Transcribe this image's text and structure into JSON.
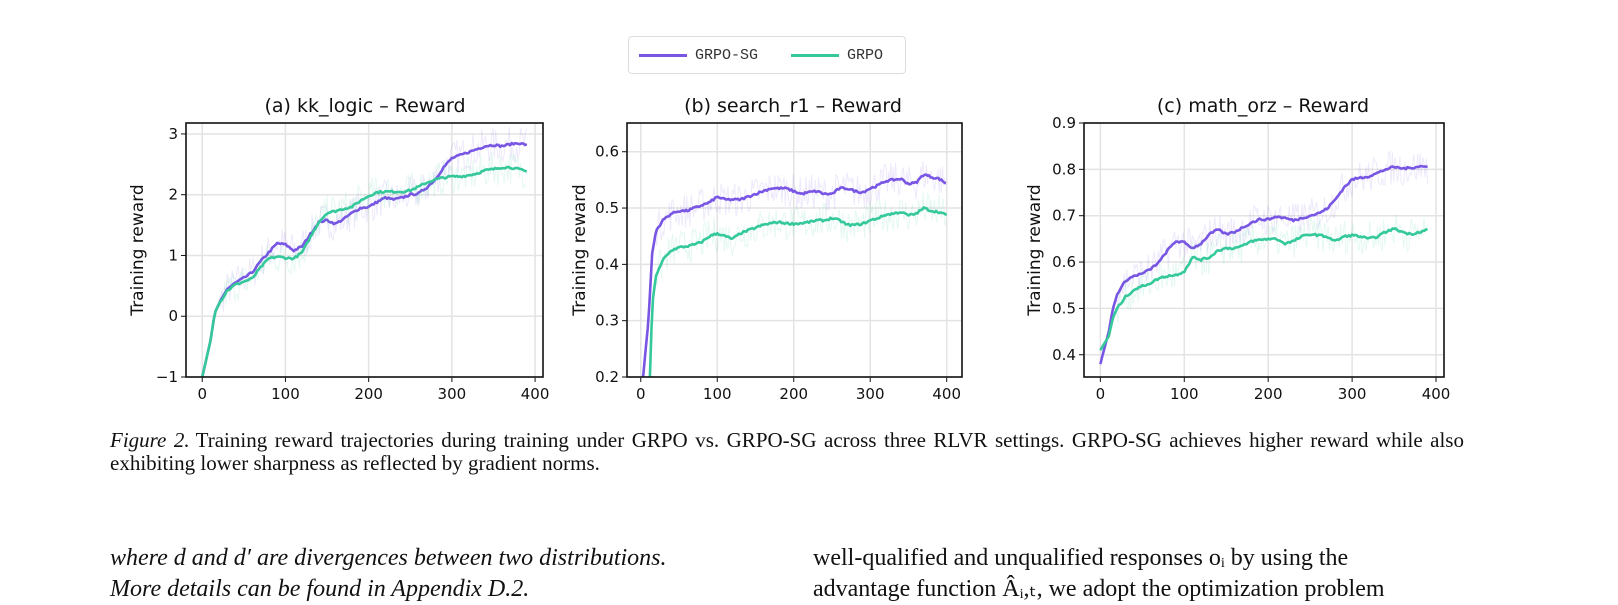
{
  "legend": {
    "items": [
      {
        "label": "GRPO-SG",
        "color": "#7856e3"
      },
      {
        "label": "GRPO",
        "color": "#34c89a"
      }
    ]
  },
  "chart_data": [
    {
      "type": "line",
      "title": "(a) kk_logic – Reward",
      "xlabel": "",
      "ylabel": "Training reward",
      "xlim": [
        -19.5,
        409.5
      ],
      "ylim": [
        -1,
        3.18
      ],
      "xticks": [
        0,
        100,
        200,
        300,
        400
      ],
      "yticks": [
        -1,
        0,
        1,
        2,
        3
      ],
      "ytick_labels": [
        "−1",
        "0",
        "1",
        "2",
        "3"
      ],
      "grid": true,
      "series": [
        {
          "name": "GRPO-SG",
          "color": "#7856e3",
          "x": [
            0,
            10,
            15,
            20,
            30,
            40,
            50,
            60,
            70,
            80,
            90,
            100,
            110,
            120,
            130,
            140,
            150,
            160,
            170,
            180,
            190,
            200,
            210,
            220,
            230,
            240,
            250,
            260,
            270,
            280,
            290,
            300,
            310,
            320,
            330,
            340,
            350,
            360,
            370,
            380,
            390
          ],
          "y": [
            -1,
            -0.4,
            0.05,
            0.2,
            0.45,
            0.55,
            0.63,
            0.72,
            0.9,
            1.05,
            1.2,
            1.18,
            1.08,
            1.15,
            1.35,
            1.55,
            1.58,
            1.52,
            1.6,
            1.7,
            1.78,
            1.8,
            1.88,
            1.95,
            1.92,
            1.95,
            2.0,
            2.02,
            2.12,
            2.25,
            2.45,
            2.6,
            2.65,
            2.7,
            2.75,
            2.8,
            2.82,
            2.8,
            2.83,
            2.85,
            2.82
          ]
        },
        {
          "name": "GRPO",
          "color": "#34c89a",
          "x": [
            0,
            10,
            15,
            20,
            30,
            40,
            50,
            60,
            70,
            80,
            90,
            100,
            110,
            120,
            130,
            140,
            150,
            160,
            170,
            180,
            190,
            200,
            210,
            220,
            230,
            240,
            250,
            260,
            270,
            280,
            290,
            300,
            310,
            320,
            330,
            340,
            350,
            360,
            370,
            380,
            390
          ],
          "y": [
            -1,
            -0.4,
            0.05,
            0.2,
            0.42,
            0.52,
            0.57,
            0.62,
            0.8,
            0.95,
            0.98,
            0.96,
            0.95,
            1.05,
            1.3,
            1.55,
            1.7,
            1.73,
            1.77,
            1.8,
            1.9,
            1.98,
            2.04,
            2.05,
            2.05,
            2.05,
            2.07,
            2.13,
            2.2,
            2.25,
            2.28,
            2.3,
            2.3,
            2.32,
            2.35,
            2.4,
            2.42,
            2.45,
            2.45,
            2.42,
            2.38
          ]
        }
      ]
    },
    {
      "type": "line",
      "title": "(b) search_r1 – Reward",
      "xlabel": "",
      "ylabel": "Training reward",
      "xlim": [
        -18,
        420
      ],
      "ylim": [
        0.2,
        0.651
      ],
      "xticks": [
        0,
        100,
        200,
        300,
        400
      ],
      "yticks": [
        0.2,
        0.3,
        0.4,
        0.5,
        0.6
      ],
      "ytick_labels": [
        "0.2",
        "0.3",
        "0.4",
        "0.5",
        "0.6"
      ],
      "grid": true,
      "series": [
        {
          "name": "GRPO-SG",
          "color": "#7856e3",
          "x": [
            3,
            10,
            15,
            20,
            30,
            40,
            50,
            60,
            70,
            80,
            90,
            100,
            110,
            120,
            130,
            140,
            150,
            160,
            170,
            180,
            190,
            200,
            210,
            220,
            230,
            240,
            250,
            260,
            270,
            280,
            290,
            300,
            310,
            320,
            330,
            340,
            350,
            360,
            370,
            380,
            390,
            400
          ],
          "y": [
            0.2,
            0.3,
            0.42,
            0.46,
            0.48,
            0.49,
            0.495,
            0.495,
            0.5,
            0.505,
            0.51,
            0.52,
            0.515,
            0.515,
            0.515,
            0.52,
            0.525,
            0.53,
            0.535,
            0.535,
            0.535,
            0.53,
            0.525,
            0.528,
            0.53,
            0.525,
            0.525,
            0.535,
            0.535,
            0.53,
            0.528,
            0.535,
            0.54,
            0.548,
            0.55,
            0.552,
            0.543,
            0.545,
            0.56,
            0.555,
            0.552,
            0.543
          ]
        },
        {
          "name": "GRPO",
          "color": "#34c89a",
          "x": [
            12,
            15,
            20,
            30,
            40,
            50,
            60,
            70,
            80,
            90,
            100,
            110,
            120,
            130,
            140,
            150,
            160,
            170,
            180,
            190,
            200,
            210,
            220,
            230,
            240,
            250,
            260,
            270,
            280,
            290,
            300,
            310,
            320,
            330,
            340,
            350,
            360,
            370,
            380,
            390,
            400
          ],
          "y": [
            0.2,
            0.33,
            0.38,
            0.41,
            0.425,
            0.43,
            0.432,
            0.435,
            0.44,
            0.45,
            0.455,
            0.45,
            0.445,
            0.455,
            0.46,
            0.465,
            0.47,
            0.473,
            0.475,
            0.473,
            0.472,
            0.473,
            0.475,
            0.478,
            0.478,
            0.482,
            0.478,
            0.47,
            0.47,
            0.472,
            0.478,
            0.482,
            0.488,
            0.49,
            0.493,
            0.487,
            0.49,
            0.5,
            0.495,
            0.493,
            0.487
          ]
        }
      ]
    },
    {
      "type": "line",
      "title": "(c) math_orz – Reward",
      "xlabel": "",
      "ylabel": "Training reward",
      "xlim": [
        -19.5,
        409.5
      ],
      "ylim": [
        0.352,
        0.9
      ],
      "xticks": [
        0,
        100,
        200,
        300,
        400
      ],
      "yticks": [
        0.4,
        0.5,
        0.6,
        0.7,
        0.8,
        0.9
      ],
      "ytick_labels": [
        "0.4",
        "0.5",
        "0.6",
        "0.7",
        "0.8",
        "0.9"
      ],
      "grid": true,
      "series": [
        {
          "name": "GRPO-SG",
          "color": "#7856e3",
          "x": [
            0,
            10,
            15,
            20,
            30,
            40,
            50,
            60,
            70,
            80,
            90,
            100,
            110,
            120,
            130,
            140,
            150,
            160,
            170,
            180,
            190,
            200,
            210,
            220,
            230,
            240,
            250,
            260,
            270,
            280,
            290,
            300,
            310,
            320,
            330,
            340,
            350,
            360,
            370,
            380,
            390
          ],
          "y": [
            0.38,
            0.45,
            0.5,
            0.53,
            0.56,
            0.57,
            0.575,
            0.585,
            0.6,
            0.625,
            0.645,
            0.642,
            0.63,
            0.64,
            0.66,
            0.67,
            0.66,
            0.665,
            0.675,
            0.685,
            0.692,
            0.692,
            0.698,
            0.695,
            0.69,
            0.695,
            0.7,
            0.705,
            0.715,
            0.735,
            0.76,
            0.778,
            0.782,
            0.785,
            0.792,
            0.8,
            0.805,
            0.802,
            0.803,
            0.807,
            0.805
          ]
        },
        {
          "name": "GRPO",
          "color": "#34c89a",
          "x": [
            0,
            10,
            15,
            20,
            30,
            40,
            50,
            60,
            70,
            80,
            90,
            100,
            110,
            120,
            130,
            140,
            150,
            160,
            170,
            180,
            190,
            200,
            210,
            220,
            230,
            240,
            250,
            260,
            270,
            280,
            290,
            300,
            310,
            320,
            330,
            340,
            350,
            360,
            370,
            380,
            390
          ],
          "y": [
            0.41,
            0.44,
            0.48,
            0.5,
            0.525,
            0.54,
            0.548,
            0.555,
            0.565,
            0.57,
            0.572,
            0.58,
            0.61,
            0.605,
            0.61,
            0.625,
            0.63,
            0.63,
            0.635,
            0.645,
            0.648,
            0.65,
            0.65,
            0.64,
            0.645,
            0.655,
            0.66,
            0.658,
            0.655,
            0.645,
            0.655,
            0.658,
            0.655,
            0.65,
            0.655,
            0.665,
            0.672,
            0.665,
            0.66,
            0.665,
            0.67
          ]
        }
      ]
    }
  ],
  "caption": {
    "label": "Figure 2.",
    "text": "Training reward trajectories during training under GRPO vs. GRPO-SG across three RLVR settings. GRPO-SG achieves higher reward while also exhibiting lower sharpness as reflected by gradient norms."
  },
  "body": {
    "left_lines": [
      "where d and d′ are divergences between two distributions.",
      "More details can be found in Appendix D.2."
    ],
    "right_lines": [
      "well-qualified and unqualified responses oᵢ by using the",
      "advantage function Âᵢ,ₜ, we adopt the optimization problem"
    ]
  }
}
